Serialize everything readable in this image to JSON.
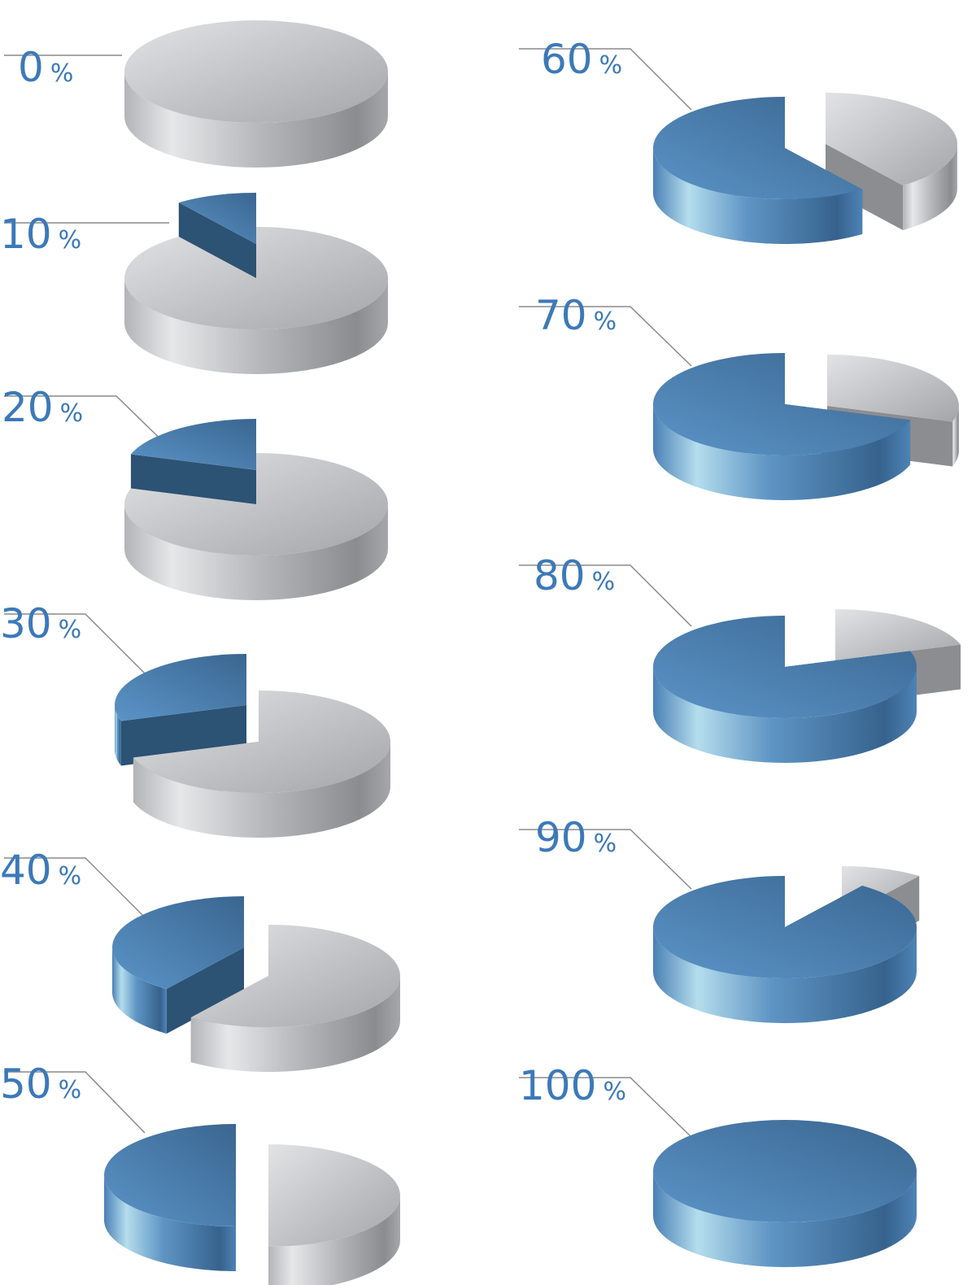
{
  "chart_data": [
    {
      "type": "pie",
      "label": "0",
      "unit": "%",
      "highlight_percent": 0,
      "values": [
        0,
        100
      ]
    },
    {
      "type": "pie",
      "label": "10",
      "unit": "%",
      "highlight_percent": 10,
      "values": [
        10,
        90
      ]
    },
    {
      "type": "pie",
      "label": "20",
      "unit": "%",
      "highlight_percent": 20,
      "values": [
        20,
        80
      ]
    },
    {
      "type": "pie",
      "label": "30",
      "unit": "%",
      "highlight_percent": 30,
      "values": [
        30,
        70
      ]
    },
    {
      "type": "pie",
      "label": "40",
      "unit": "%",
      "highlight_percent": 40,
      "values": [
        40,
        60
      ]
    },
    {
      "type": "pie",
      "label": "50",
      "unit": "%",
      "highlight_percent": 50,
      "values": [
        50,
        50
      ]
    },
    {
      "type": "pie",
      "label": "60",
      "unit": "%",
      "highlight_percent": 60,
      "values": [
        60,
        40
      ]
    },
    {
      "type": "pie",
      "label": "70",
      "unit": "%",
      "highlight_percent": 70,
      "values": [
        70,
        30
      ]
    },
    {
      "type": "pie",
      "label": "80",
      "unit": "%",
      "highlight_percent": 80,
      "values": [
        80,
        20
      ]
    },
    {
      "type": "pie",
      "label": "90",
      "unit": "%",
      "highlight_percent": 90,
      "values": [
        90,
        10
      ]
    },
    {
      "type": "pie",
      "label": "100",
      "unit": "%",
      "highlight_percent": 100,
      "values": [
        100,
        0
      ]
    }
  ],
  "colors": {
    "highlight": "#4f86bb",
    "remainder": "#b4b5b8",
    "label": "#3b79b9",
    "leader_line": "#8a8a8a"
  }
}
